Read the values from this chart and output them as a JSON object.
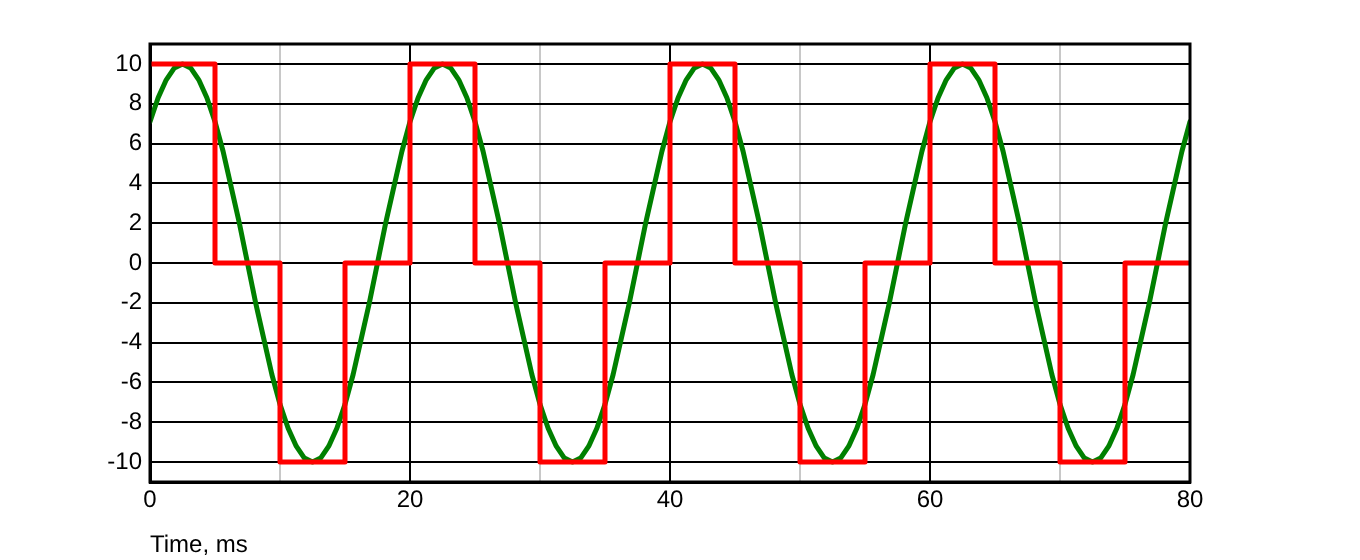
{
  "chart_data": {
    "type": "line",
    "xlabel": "Time, ms",
    "xlim": [
      0,
      80
    ],
    "ylim": [
      -11,
      11
    ],
    "xticks": [
      0,
      {
        "value": 10,
        "label": null
      },
      20,
      {
        "value": 30,
        "label": null
      },
      40,
      {
        "value": 50,
        "label": null
      },
      60,
      {
        "value": 70,
        "label": null
      },
      80
    ],
    "yticks": [
      -10,
      -8,
      -6,
      -4,
      -2,
      0,
      2,
      4,
      6,
      8,
      10
    ],
    "grid": true,
    "marker": "none",
    "line_style": "solid",
    "series": [
      {
        "type": "step",
        "color": "#ff0000",
        "x": [
          0,
          5,
          10,
          15,
          20,
          25,
          30,
          35,
          40,
          45,
          50,
          55,
          60,
          65,
          70,
          75,
          80
        ],
        "values": [
          10,
          0,
          -10,
          0,
          10,
          0,
          -10,
          0,
          10,
          0,
          -10,
          0,
          10,
          0,
          -10,
          0,
          0
        ]
      },
      {
        "color": "#008000",
        "x": [
          0,
          0.625,
          1.25,
          1.875,
          2.5,
          3.125,
          3.75,
          4.375,
          5,
          5.625,
          6.25,
          6.875,
          7.5,
          8.125,
          8.75,
          9.375,
          10,
          10.625,
          11.25,
          11.875,
          12.5,
          13.125,
          13.75,
          14.375,
          15,
          15.625,
          16.25,
          16.875,
          17.5,
          18.125,
          18.75,
          19.375,
          20,
          20.625,
          21.25,
          21.875,
          22.5,
          23.125,
          23.75,
          24.375,
          25,
          25.625,
          26.25,
          26.875,
          27.5,
          28.125,
          28.75,
          29.375,
          30,
          30.625,
          31.25,
          31.875,
          32.5,
          33.125,
          33.75,
          34.375,
          35,
          35.625,
          36.25,
          36.875,
          37.5,
          38.125,
          38.75,
          39.375,
          40,
          40.625,
          41.25,
          41.875,
          42.5,
          43.125,
          43.75,
          44.375,
          45,
          45.625,
          46.25,
          46.875,
          47.5,
          48.125,
          48.75,
          49.375,
          50,
          50.625,
          51.25,
          51.875,
          52.5,
          53.125,
          53.75,
          54.375,
          55,
          55.625,
          56.25,
          56.875,
          57.5,
          58.125,
          58.75,
          59.375,
          60,
          60.625,
          61.25,
          61.875,
          62.5,
          63.125,
          63.75,
          64.375,
          65,
          65.625,
          66.25,
          66.875,
          67.5,
          68.125,
          68.75,
          69.375,
          70,
          70.625,
          71.25,
          71.875,
          72.5,
          73.125,
          73.75,
          74.375,
          75,
          75.625,
          76.25,
          76.875,
          77.5,
          78.125,
          78.75,
          79.375,
          80
        ],
        "values": [
          7.1,
          8.3,
          9.2,
          9.8,
          10,
          9.8,
          9.2,
          8.3,
          7.1,
          5.6,
          3.8,
          2.0,
          0,
          -2.0,
          -3.8,
          -5.6,
          -7.1,
          -8.3,
          -9.2,
          -9.8,
          -10,
          -9.8,
          -9.2,
          -8.3,
          -7.1,
          -5.6,
          -3.8,
          -2.0,
          0,
          2.0,
          3.8,
          5.6,
          7.1,
          8.3,
          9.2,
          9.8,
          10,
          9.8,
          9.2,
          8.3,
          7.1,
          5.6,
          3.8,
          2.0,
          0,
          -2.0,
          -3.8,
          -5.6,
          -7.1,
          -8.3,
          -9.2,
          -9.8,
          -10,
          -9.8,
          -9.2,
          -8.3,
          -7.1,
          -5.6,
          -3.8,
          -2.0,
          0,
          2.0,
          3.8,
          5.6,
          7.1,
          8.3,
          9.2,
          9.8,
          10,
          9.8,
          9.2,
          8.3,
          7.1,
          5.6,
          3.8,
          2.0,
          0,
          -2.0,
          -3.8,
          -5.6,
          -7.1,
          -8.3,
          -9.2,
          -9.8,
          -10,
          -9.8,
          -9.2,
          -8.3,
          -7.1,
          -5.6,
          -3.8,
          -2.0,
          0,
          2.0,
          3.8,
          5.6,
          7.1,
          8.3,
          9.2,
          9.8,
          10,
          9.8,
          9.2,
          8.3,
          7.1,
          5.6,
          3.8,
          2.0,
          0,
          -2.0,
          -3.8,
          -5.6,
          -7.1,
          -8.3,
          -9.2,
          -9.8,
          -10,
          -9.8,
          -9.2,
          -8.3,
          -7.1,
          -5.6,
          -3.8,
          -2.0,
          0,
          2.0,
          3.8,
          5.6,
          7.1
        ]
      }
    ]
  }
}
